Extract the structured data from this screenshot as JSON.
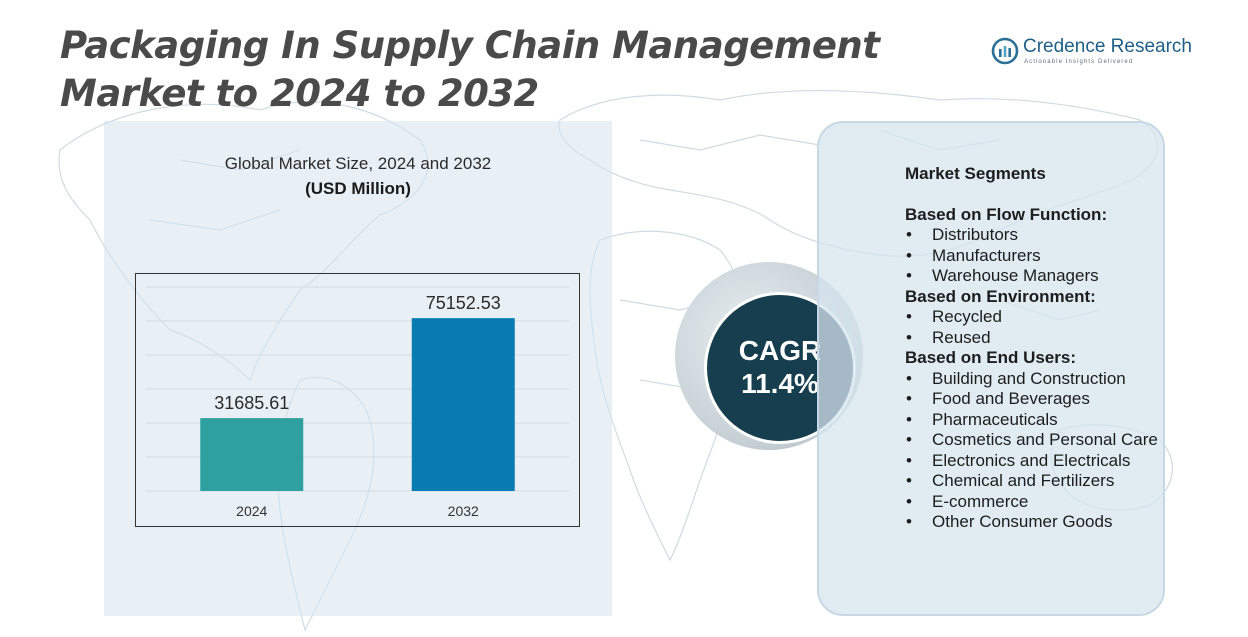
{
  "title": "Packaging In Supply Chain Management Market to 2024 to 2032",
  "logo": {
    "name": "Credence Research",
    "tagline": "Actionable Insights Delivered"
  },
  "chart_heading": {
    "title": "Global Market Size,  2024 and 2032",
    "subtitle": "(USD Million)"
  },
  "chart_data": {
    "type": "bar",
    "title": "Global Market Size,  2024 and 2032",
    "subtitle": "(USD Million)",
    "categories": [
      "2024",
      "2032"
    ],
    "values": [
      31685.61,
      75152.53
    ],
    "value_labels": [
      "31685.61",
      "75152.53"
    ],
    "colors": [
      "#2fa0a0",
      "#0a7bb0"
    ],
    "xlabel": "",
    "ylabel": "",
    "ylim": [
      0,
      90000
    ],
    "grid": true
  },
  "cagr": {
    "label": "CAGR",
    "value": "11.4%",
    "color": "#163e4f"
  },
  "segments": {
    "title": "Market Segments",
    "groups": [
      {
        "title": "Based on Flow Function:",
        "items": [
          "Distributors",
          "Manufacturers",
          "Warehouse Managers"
        ]
      },
      {
        "title": "Based on Environment:",
        "items": [
          "Recycled",
          "Reused"
        ]
      },
      {
        "title": "Based on End Users:",
        "items": [
          "Building and Construction",
          "Food and Beverages",
          "Pharmaceuticals",
          "Cosmetics and Personal Care",
          "Electronics and Electricals",
          "Chemical and Fertilizers",
          "E-commerce",
          "Other Consumer Goods"
        ]
      }
    ]
  }
}
